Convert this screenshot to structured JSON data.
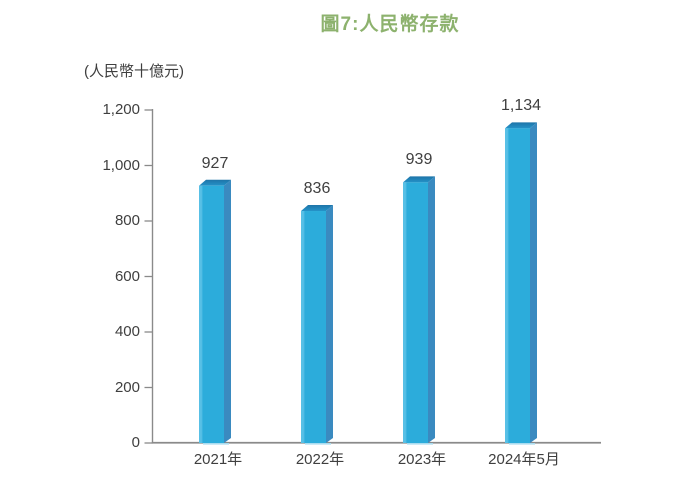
{
  "figure": {
    "title": "圖7:人民幣存款",
    "unit_label": "(人民幣十億元)"
  },
  "chart_data": {
    "type": "bar",
    "title": "圖7:人民幣存款",
    "ylabel": "(人民幣十億元)",
    "categories": [
      "2021年",
      "2022年",
      "2023年",
      "2024年5月"
    ],
    "values": [
      927,
      836,
      939,
      1134
    ],
    "value_labels": [
      "927",
      "836",
      "939",
      "1,134"
    ],
    "ylim": [
      0,
      1200
    ],
    "ytick_interval": 200,
    "ytick_labels": [
      "0",
      "200",
      "400",
      "600",
      "800",
      "1,000",
      "1,200"
    ],
    "grid": false,
    "legend_position": "none",
    "bar_style": "3d-box",
    "colors": {
      "title_green": "#8DB26E",
      "bar_front": "#2CACDB",
      "bar_front_highlight": "#58C0E6",
      "bar_side": "#3A8AC0",
      "bar_top_back": "#1E74A8",
      "bar_top_front": "#2492C8",
      "bar_base_edge": "#A9DCF0",
      "axis": "#8A8A8A",
      "label_text": "#3F3F3F"
    }
  }
}
